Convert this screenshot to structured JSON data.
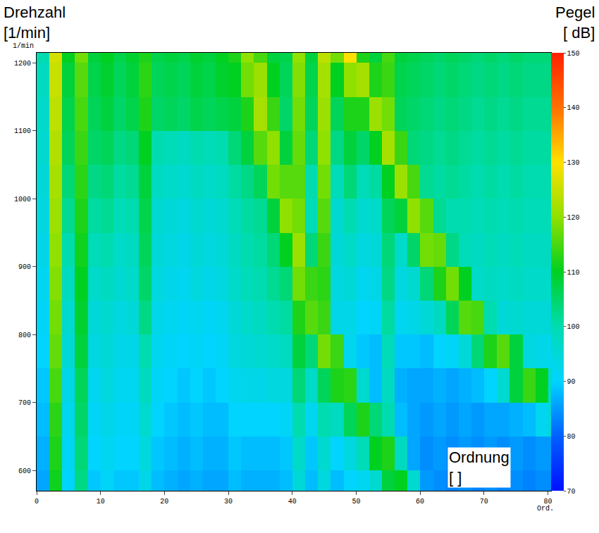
{
  "chart_data": {
    "type": "heatmap",
    "y_label": "Drehzahl",
    "y_unit": "[1/min]",
    "y_axis_unit": "1/min",
    "x_label": "Ordnung",
    "x_unit": "[ ]",
    "x_axis_unit": "Ord.",
    "colorbar_label": "Pegel",
    "colorbar_unit": "[ dB]",
    "grid": false,
    "xlim": [
      0,
      80.5
    ],
    "xticks": [
      0,
      10,
      20,
      30,
      40,
      50,
      60,
      70,
      80
    ],
    "ylim": [
      570,
      1215
    ],
    "yticks": [
      600,
      700,
      800,
      900,
      1000,
      1100,
      1200
    ],
    "colorbar_range": [
      70,
      150
    ],
    "colorbar_ticks": [
      70,
      80,
      90,
      100,
      110,
      120,
      130,
      140,
      150
    ],
    "x": [
      1,
      3,
      5,
      7,
      9,
      11,
      13,
      15,
      17,
      19,
      21,
      23,
      25,
      27,
      29,
      31,
      33,
      35,
      37,
      39,
      41,
      43,
      45,
      47,
      49,
      51,
      53,
      55,
      57,
      59,
      61,
      63,
      65,
      67,
      69,
      71,
      73,
      75,
      77,
      79,
      81
    ],
    "y": [
      575,
      625,
      675,
      725,
      775,
      825,
      875,
      925,
      975,
      1025,
      1075,
      1125,
      1175,
      1225
    ],
    "z": [
      [
        86,
        111,
        90,
        103,
        89,
        91,
        89,
        89,
        93,
        88,
        87,
        86,
        87,
        86,
        86,
        88,
        87,
        87,
        87,
        88,
        95,
        88,
        94,
        88,
        90,
        92,
        96,
        108,
        110,
        96,
        85,
        84,
        83,
        84,
        83,
        84,
        83,
        84,
        83,
        84,
        84
      ],
      [
        87,
        112,
        91,
        104,
        90,
        92,
        90,
        90,
        94,
        89,
        88,
        87,
        88,
        87,
        87,
        89,
        88,
        88,
        88,
        89,
        97,
        89,
        96,
        90,
        94,
        99,
        110,
        112,
        98,
        86,
        84,
        85,
        84,
        85,
        84,
        85,
        84,
        85,
        84,
        85,
        85
      ],
      [
        88,
        113,
        92,
        105,
        91,
        93,
        91,
        91,
        96,
        90,
        89,
        88,
        89,
        88,
        88,
        90,
        90,
        90,
        90,
        91,
        100,
        92,
        100,
        98,
        106,
        112,
        104,
        100,
        88,
        86,
        85,
        86,
        85,
        86,
        85,
        86,
        86,
        87,
        88,
        92,
        95
      ],
      [
        89,
        115,
        93,
        106,
        92,
        94,
        92,
        92,
        98,
        91,
        90,
        89,
        90,
        89,
        90,
        92,
        93,
        93,
        94,
        94,
        104,
        97,
        106,
        112,
        113,
        96,
        88,
        98,
        87,
        86,
        86,
        87,
        86,
        87,
        88,
        90,
        96,
        108,
        114,
        110,
        96
      ],
      [
        90,
        117,
        95,
        108,
        94,
        95,
        93,
        93,
        100,
        92,
        91,
        90,
        91,
        90,
        91,
        94,
        95,
        96,
        97,
        98,
        108,
        104,
        118,
        114,
        92,
        89,
        88,
        99,
        89,
        89,
        88,
        90,
        91,
        95,
        104,
        112,
        116,
        108,
        94,
        93,
        92
      ],
      [
        91,
        118,
        96,
        109,
        95,
        96,
        94,
        95,
        103,
        93,
        92,
        91,
        92,
        91,
        92,
        95,
        97,
        98,
        100,
        101,
        112,
        116,
        114,
        93,
        93,
        90,
        91,
        101,
        92,
        93,
        95,
        98,
        106,
        116,
        115,
        100,
        95,
        96,
        95,
        95,
        95
      ],
      [
        92,
        119,
        98,
        110,
        97,
        98,
        96,
        97,
        105,
        94,
        93,
        92,
        94,
        93,
        94,
        97,
        99,
        100,
        102,
        104,
        118,
        114,
        113,
        94,
        95,
        92,
        93,
        103,
        94,
        96,
        104,
        112,
        118,
        110,
        97,
        98,
        97,
        98,
        97,
        97,
        97
      ],
      [
        93,
        120,
        100,
        111,
        99,
        100,
        97,
        98,
        106,
        95,
        94,
        93,
        95,
        94,
        95,
        98,
        100,
        101,
        104,
        110,
        121,
        104,
        114,
        95,
        97,
        94,
        95,
        104,
        97,
        105,
        118,
        117,
        103,
        99,
        98,
        99,
        98,
        99,
        98,
        98,
        98
      ],
      [
        94,
        121,
        102,
        112,
        101,
        102,
        99,
        100,
        107,
        96,
        95,
        94,
        96,
        95,
        96,
        99,
        101,
        102,
        108,
        120,
        118,
        99,
        116,
        96,
        100,
        96,
        97,
        106,
        108,
        120,
        116,
        102,
        100,
        100,
        99,
        100,
        99,
        100,
        99,
        99,
        99
      ],
      [
        95,
        122,
        104,
        113,
        103,
        104,
        101,
        102,
        108,
        98,
        97,
        96,
        98,
        97,
        98,
        101,
        103,
        106,
        118,
        116,
        116,
        100,
        118,
        99,
        104,
        99,
        101,
        110,
        121,
        115,
        102,
        101,
        102,
        101,
        100,
        101,
        100,
        101,
        100,
        100,
        100
      ],
      [
        96,
        123,
        106,
        114,
        105,
        106,
        103,
        104,
        110,
        100,
        99,
        98,
        100,
        99,
        100,
        104,
        108,
        116,
        120,
        108,
        117,
        104,
        120,
        103,
        108,
        105,
        110,
        122,
        114,
        104,
        103,
        102,
        103,
        102,
        101,
        102,
        101,
        102,
        101,
        101,
        101
      ],
      [
        97,
        124,
        107,
        115,
        106,
        108,
        105,
        107,
        112,
        105,
        106,
        105,
        107,
        106,
        107,
        108,
        112,
        122,
        114,
        105,
        118,
        106,
        121,
        106,
        112,
        112,
        121,
        118,
        106,
        105,
        104,
        103,
        104,
        103,
        102,
        103,
        102,
        103,
        102,
        102,
        102
      ],
      [
        98,
        125,
        108,
        116,
        107,
        109,
        106,
        108,
        113,
        106,
        107,
        106,
        108,
        107,
        109,
        110,
        118,
        121,
        110,
        106,
        119,
        107,
        122,
        110,
        120,
        122,
        112,
        114,
        107,
        106,
        105,
        104,
        105,
        104,
        103,
        104,
        103,
        104,
        103,
        103,
        103
      ],
      [
        100,
        126,
        110,
        118,
        108,
        110,
        107,
        109,
        112,
        107,
        108,
        107,
        109,
        108,
        110,
        112,
        120,
        115,
        108,
        107,
        120,
        108,
        124,
        118,
        130,
        112,
        108,
        115,
        108,
        107,
        106,
        105,
        106,
        105,
        104,
        105,
        104,
        105,
        104,
        104,
        104
      ]
    ]
  }
}
